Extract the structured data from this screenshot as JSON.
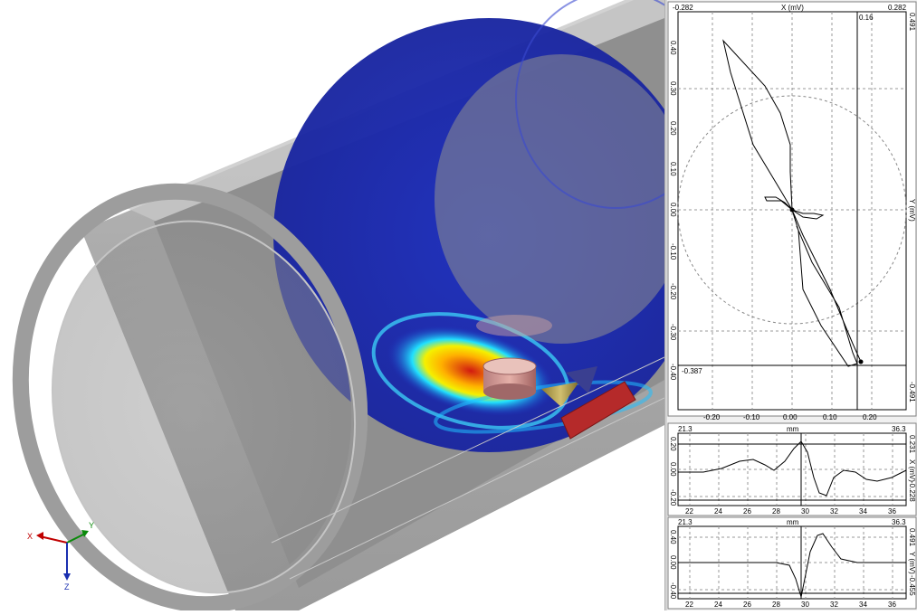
{
  "viewport": {
    "axes": {
      "x_label": "X",
      "y_label": "Y",
      "z_label": "Z"
    }
  },
  "lissajous": {
    "x_axis_title": "X (mV)",
    "y_axis_title": "Y (mV)",
    "x_min_label": "-0.282",
    "x_max_label": "0.282",
    "y_max_label": "0.491",
    "y_min_label": "-0.491",
    "cursor_x_label": "0.16",
    "cursor_y_label": "-0.387",
    "x_ticks": [
      "-0.20",
      "-0.10",
      "0.00",
      "0.10",
      "0.20"
    ],
    "y_ticks": [
      "0.40",
      "0.30",
      "0.20",
      "0.10",
      "0.00",
      "-0.10",
      "-0.20",
      "-0.30",
      "-0.40"
    ]
  },
  "strip_x": {
    "left_range": "21.3",
    "right_range": "36.3",
    "unit": "mm",
    "axis_title": "X (mV)",
    "max_label": "0.231",
    "min_label": "-0.228",
    "y_ticks": [
      "0.20",
      "0.00",
      "-0.20"
    ],
    "x_ticks": [
      "22",
      "24",
      "26",
      "28",
      "30",
      "32",
      "34",
      "36"
    ]
  },
  "strip_y": {
    "left_range": "21.3",
    "right_range": "36.3",
    "unit": "mm",
    "axis_title": "Y (mV)",
    "max_label": "0.491",
    "min_label": "-0.455",
    "y_ticks": [
      "0.40",
      "0.00",
      "-0.40"
    ],
    "x_ticks": [
      "22",
      "24",
      "26",
      "28",
      "30",
      "32",
      "34",
      "36"
    ]
  },
  "colors": {
    "pipe_gray": "#a9a9a9",
    "field_blue": "#1a2fb0",
    "defect_red": "#b52a2a",
    "grid": "#999999",
    "trace": "#000000"
  }
}
